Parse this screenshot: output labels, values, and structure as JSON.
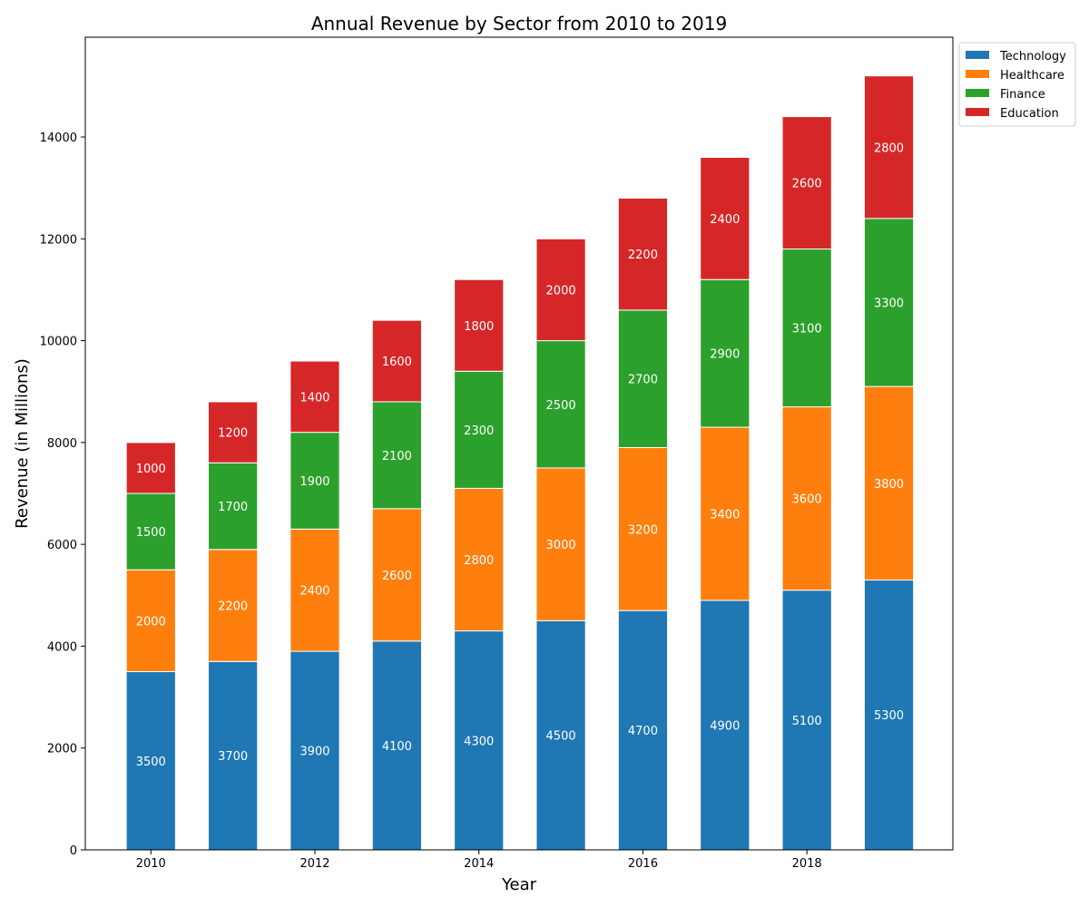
{
  "chart_data": {
    "type": "bar",
    "stacked": true,
    "title": "Annual Revenue by Sector from 2010 to 2019",
    "xlabel": "Year",
    "ylabel": "Revenue (in Millions)",
    "categories": [
      2010,
      2011,
      2012,
      2013,
      2014,
      2015,
      2016,
      2017,
      2018,
      2019
    ],
    "x_ticks": [
      2010,
      2012,
      2014,
      2016,
      2018
    ],
    "y_ticks": [
      0,
      2000,
      4000,
      6000,
      8000,
      10000,
      12000,
      14000
    ],
    "ylim": [
      0,
      15960
    ],
    "xlim": [
      2009.2,
      2019.78
    ],
    "grid": false,
    "legend_position": "outside-top-right",
    "data_labels": true,
    "series": [
      {
        "name": "Technology",
        "color": "#1f77b4",
        "values": [
          3500,
          3700,
          3900,
          4100,
          4300,
          4500,
          4700,
          4900,
          5100,
          5300
        ]
      },
      {
        "name": "Healthcare",
        "color": "#ff7f0e",
        "values": [
          2000,
          2200,
          2400,
          2600,
          2800,
          3000,
          3200,
          3400,
          3600,
          3800
        ]
      },
      {
        "name": "Finance",
        "color": "#2ca02c",
        "values": [
          1500,
          1700,
          1900,
          2100,
          2300,
          2500,
          2700,
          2900,
          3100,
          3300
        ]
      },
      {
        "name": "Education",
        "color": "#d62728",
        "values": [
          1000,
          1200,
          1400,
          1600,
          1800,
          2000,
          2200,
          2400,
          2600,
          2800
        ]
      }
    ]
  }
}
